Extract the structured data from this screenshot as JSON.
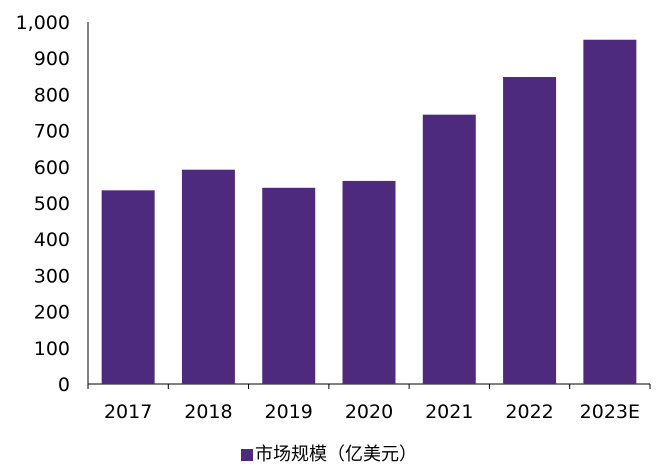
{
  "chart_data": {
    "type": "bar",
    "categories": [
      "2017",
      "2018",
      "2019",
      "2020",
      "2021",
      "2022",
      "2023E"
    ],
    "series": [
      {
        "name": "市场规模（亿美元）",
        "values": [
          535,
          592,
          542,
          561,
          744,
          848,
          951
        ]
      }
    ],
    "ylim": [
      0,
      1000
    ],
    "yticks": [
      0,
      100,
      200,
      300,
      400,
      500,
      600,
      700,
      800,
      900,
      1000
    ],
    "ytick_labels": [
      "0",
      "100",
      "200",
      "300",
      "400",
      "500",
      "600",
      "700",
      "800",
      "900",
      "1,000"
    ],
    "grid": false,
    "legend_position": "bottom-center",
    "bar_color": "#4e2a7e"
  }
}
